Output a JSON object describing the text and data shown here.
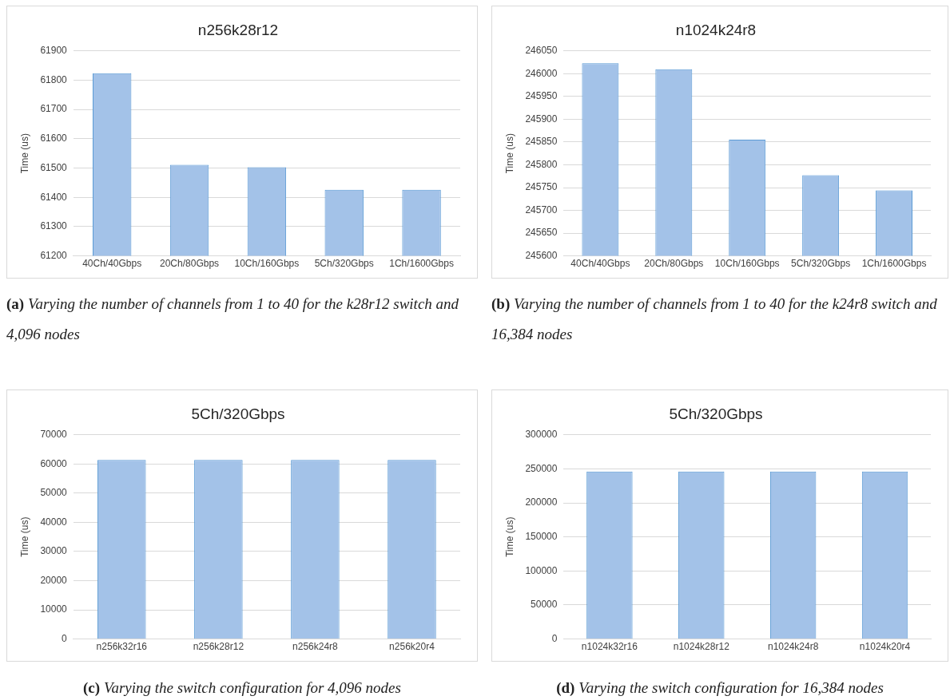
{
  "chart_data": [
    {
      "type": "bar",
      "title": "n256k28r12",
      "ylabel": "Time (us)",
      "categories": [
        "40Ch/40Gbps",
        "20Ch/80Gbps",
        "10Ch/160Gbps",
        "5Ch/320Gbps",
        "1Ch/1600Gbps"
      ],
      "values": [
        61824,
        61511,
        61503,
        61426,
        61426
      ],
      "color": "#a3c2e8",
      "ylim": [
        61200,
        61900
      ],
      "yticks": [
        61200,
        61300,
        61400,
        61500,
        61600,
        61700,
        61800,
        61900
      ],
      "grid": "y",
      "legend": false,
      "annotations": [
        "(a) Varying the number of channels from 1 to 40 for the k28r12 switch and 4,096 nodes"
      ]
    },
    {
      "type": "bar",
      "title": "n1024k24r8",
      "ylabel": "Time (us)",
      "categories": [
        "40Ch/40Gbps",
        "20Ch/80Gbps",
        "10Ch/160Gbps",
        "5Ch/320Gbps",
        "1Ch/1600Gbps"
      ],
      "values": [
        246023,
        246010,
        245855,
        245777,
        245744
      ],
      "color": "#a3c2e8",
      "ylim": [
        245600,
        246050
      ],
      "yticks": [
        245600,
        245650,
        245700,
        245750,
        245800,
        245850,
        245900,
        245950,
        246000,
        246050
      ],
      "grid": "y",
      "legend": false,
      "annotations": [
        "(b) Varying the number of channels from 1 to 40 for the k24r8 switch and 16,384 nodes"
      ]
    },
    {
      "type": "bar",
      "title": "5Ch/320Gbps",
      "ylabel": "Time (us)",
      "categories": [
        "n256k32r16",
        "n256k28r12",
        "n256k24r8",
        "n256k20r4"
      ],
      "values": [
        61400,
        61400,
        61400,
        61400
      ],
      "color": "#a3c2e8",
      "ylim": [
        0,
        70000
      ],
      "yticks": [
        0,
        10000,
        20000,
        30000,
        40000,
        50000,
        60000,
        70000
      ],
      "grid": "y",
      "legend": false,
      "annotations": [
        "(c) Varying the switch configuration for 4,096 nodes"
      ]
    },
    {
      "type": "bar",
      "title": "5Ch/320Gbps",
      "ylabel": "Time (us)",
      "categories": [
        "n1024k32r16",
        "n1024k28r12",
        "n1024k24r8",
        "n1024k20r4"
      ],
      "values": [
        246000,
        246000,
        246000,
        246000
      ],
      "color": "#a3c2e8",
      "ylim": [
        0,
        300000
      ],
      "yticks": [
        0,
        50000,
        100000,
        150000,
        200000,
        250000,
        300000
      ],
      "grid": "y",
      "legend": false,
      "annotations": [
        "(d) Varying the switch configuration for 16,384 nodes"
      ]
    }
  ]
}
